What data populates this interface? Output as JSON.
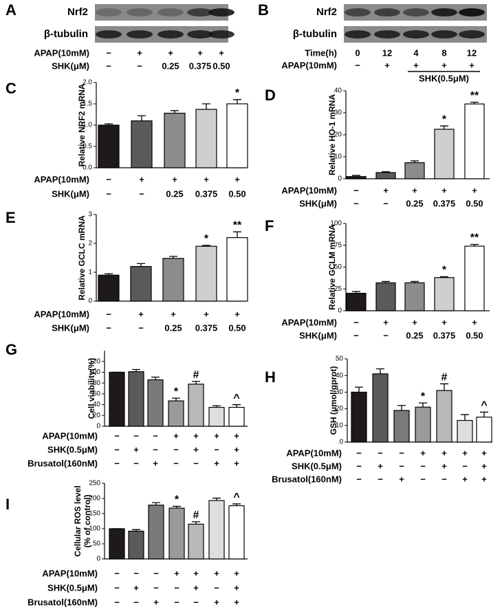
{
  "blots": [
    {
      "panel": "A",
      "bands": [
        "Nrf2",
        "β-tubulin"
      ],
      "treatments": [
        {
          "name": "APAP(10mM)",
          "values": [
            "−",
            "+",
            "+",
            "+",
            "+"
          ]
        },
        {
          "name": "SHK(μM)",
          "values": [
            "−",
            "−",
            "0.25",
            "0.375",
            "0.50"
          ]
        }
      ]
    },
    {
      "panel": "B",
      "bands": [
        "Nrf2",
        "β-tubulin"
      ],
      "treatments": [
        {
          "name": "Time(h)",
          "values": [
            "0",
            "12",
            "4",
            "8",
            "12"
          ]
        },
        {
          "name": "APAP(10mM)",
          "values": [
            "−",
            "+",
            "+",
            "+",
            "+"
          ]
        }
      ],
      "bracket_label": "SHK(0.5μM)"
    }
  ],
  "chart_data": [
    {
      "type": "bar",
      "panel": "C",
      "y_label": "Relative NRF2 mRNA",
      "values": [
        1.0,
        1.1,
        1.28,
        1.37,
        1.5
      ],
      "errors": [
        0.03,
        0.12,
        0.06,
        0.13,
        0.1
      ],
      "annotations": [
        null,
        null,
        null,
        null,
        "*"
      ],
      "colors": [
        "#1e1a1a",
        "#5a5a5a",
        "#8c8c8c",
        "#cfcfcf",
        "#ffffff"
      ],
      "ylim": [
        0,
        2
      ],
      "yticks": [
        {
          "value": 0,
          "label": "0.0"
        },
        0.5,
        {
          "value": 1,
          "label": "1.0"
        },
        1.5,
        {
          "value": 2,
          "label": "2.0"
        }
      ],
      "treatments": [
        {
          "name": "APAP(10mM)",
          "values": [
            "−",
            "+",
            "+",
            "+",
            "+"
          ]
        },
        {
          "name": "SHK(μM)",
          "values": [
            "−",
            "−",
            "0.25",
            "0.375",
            "0.50"
          ]
        }
      ]
    },
    {
      "type": "bar",
      "panel": "D",
      "y_label": "Relative HO-1 mRNA",
      "values": [
        1,
        2.8,
        7.3,
        22.5,
        34
      ],
      "errors": [
        0.5,
        0.4,
        0.8,
        1.5,
        0.8
      ],
      "annotations": [
        null,
        null,
        null,
        "*",
        "**"
      ],
      "colors": [
        "#1e1a1a",
        "#5a5a5a",
        "#8c8c8c",
        "#cfcfcf",
        "#ffffff"
      ],
      "ylim": [
        0,
        40
      ],
      "yticks": [
        0,
        10,
        20,
        30,
        40
      ],
      "treatments": [
        {
          "name": "APAP(10mM)",
          "values": [
            "−",
            "+",
            "+",
            "+",
            "+"
          ]
        },
        {
          "name": "SHK(μM)",
          "values": [
            "−",
            "−",
            "0.25",
            "0.375",
            "0.50"
          ]
        }
      ]
    },
    {
      "type": "bar",
      "panel": "E",
      "y_label": "Relative GCLC mRNA",
      "values": [
        0.9,
        1.2,
        1.48,
        1.9,
        2.2
      ],
      "errors": [
        0.05,
        0.1,
        0.07,
        0.03,
        0.2
      ],
      "annotations": [
        null,
        null,
        null,
        "*",
        "**"
      ],
      "colors": [
        "#1e1a1a",
        "#5a5a5a",
        "#8c8c8c",
        "#cfcfcf",
        "#ffffff"
      ],
      "ylim": [
        0,
        3
      ],
      "yticks": [
        0,
        1,
        2,
        3
      ],
      "treatments": [
        {
          "name": "APAP(10mM)",
          "values": [
            "−",
            "+",
            "+",
            "+",
            "+"
          ]
        },
        {
          "name": "SHK(μM)",
          "values": [
            "−",
            "−",
            "0.25",
            "0.375",
            "0.50"
          ]
        }
      ]
    },
    {
      "type": "bar",
      "panel": "F",
      "y_label": "Relative GCLM mRNA",
      "values": [
        20,
        32,
        32,
        38,
        74
      ],
      "errors": [
        2,
        1.5,
        1.5,
        1,
        2
      ],
      "annotations": [
        null,
        null,
        null,
        "*",
        "**"
      ],
      "colors": [
        "#1e1a1a",
        "#5a5a5a",
        "#8c8c8c",
        "#cfcfcf",
        "#ffffff"
      ],
      "ylim": [
        0,
        100
      ],
      "yticks": [
        0,
        25,
        50,
        75,
        100
      ],
      "treatments": [
        {
          "name": "APAP(10mM)",
          "values": [
            "−",
            "+",
            "+",
            "+",
            "+"
          ]
        },
        {
          "name": "SHK(μM)",
          "values": [
            "−",
            "−",
            "0.25",
            "0.375",
            "0.50"
          ]
        }
      ]
    },
    {
      "type": "bar",
      "panel": "G",
      "y_label": "Cell viability(%)",
      "values": [
        100,
        101,
        86,
        47,
        78,
        35,
        35
      ],
      "errors": [
        0,
        4,
        5,
        5,
        5,
        3,
        5
      ],
      "annotations": [
        null,
        null,
        null,
        "*",
        "#",
        null,
        "^"
      ],
      "colors": [
        "#1e1a1a",
        "#5a5a5a",
        "#7a7a7a",
        "#9a9a9a",
        "#b8b8b8",
        "#dedede",
        "#ffffff"
      ],
      "ylim": [
        0,
        140
      ],
      "yticks": [
        0,
        20,
        40,
        60,
        80,
        100,
        120
      ],
      "treatments": [
        {
          "name": "APAP(10mM)",
          "values": [
            "−",
            "−",
            "−",
            "+",
            "+",
            "+",
            "+"
          ]
        },
        {
          "name": "SHK(0.5μM)",
          "values": [
            "−",
            "+",
            "−",
            "−",
            "+",
            "−",
            "+"
          ]
        },
        {
          "name": "Brusatol(160nM)",
          "values": [
            "−",
            "−",
            "+",
            "−",
            "−",
            "+",
            "+"
          ]
        }
      ]
    },
    {
      "type": "bar",
      "panel": "H",
      "y_label": "GSH (μmol/gprot)",
      "values": [
        30,
        41,
        19,
        21,
        31,
        13,
        15
      ],
      "errors": [
        3,
        3,
        3,
        2.5,
        4,
        3.5,
        3
      ],
      "annotations": [
        null,
        null,
        null,
        "*",
        "#",
        null,
        "^"
      ],
      "colors": [
        "#1e1a1a",
        "#5a5a5a",
        "#7a7a7a",
        "#9a9a9a",
        "#b8b8b8",
        "#dedede",
        "#ffffff"
      ],
      "ylim": [
        0,
        50
      ],
      "yticks": [
        0,
        10,
        20,
        30,
        40,
        50
      ],
      "treatments": [
        {
          "name": "APAP(10mM)",
          "values": [
            "−",
            "−",
            "−",
            "+",
            "+",
            "+",
            "+"
          ]
        },
        {
          "name": "SHK(0.5μM)",
          "values": [
            "−",
            "+",
            "−",
            "−",
            "+",
            "−",
            "+"
          ]
        },
        {
          "name": "Brusatol(160nM)",
          "values": [
            "−",
            "−",
            "+",
            "−",
            "−",
            "+",
            "+"
          ]
        }
      ]
    },
    {
      "type": "bar",
      "panel": "I",
      "y_label": [
        "Cellular ROS level",
        "(% of control)"
      ],
      "values": [
        100,
        92,
        178,
        168,
        115,
        193,
        176
      ],
      "errors": [
        0,
        5,
        8,
        6,
        8,
        8,
        6
      ],
      "annotations": [
        null,
        null,
        null,
        "*",
        "#",
        null,
        "^"
      ],
      "colors": [
        "#1e1a1a",
        "#5a5a5a",
        "#7a7a7a",
        "#9a9a9a",
        "#b8b8b8",
        "#dedede",
        "#ffffff"
      ],
      "ylim": [
        0,
        250
      ],
      "yticks": [
        0,
        50,
        100,
        150,
        200,
        250
      ],
      "treatments": [
        {
          "name": "APAP(10mM)",
          "values": [
            "−",
            "−",
            "−",
            "+",
            "+",
            "+",
            "+"
          ]
        },
        {
          "name": "SHK(0.5μM)",
          "values": [
            "−",
            "+",
            "−",
            "−",
            "+",
            "−",
            "+"
          ]
        },
        {
          "name": "Brusatol(160nM)",
          "values": [
            "−",
            "−",
            "+",
            "−",
            "−",
            "+",
            "+"
          ]
        }
      ]
    }
  ]
}
